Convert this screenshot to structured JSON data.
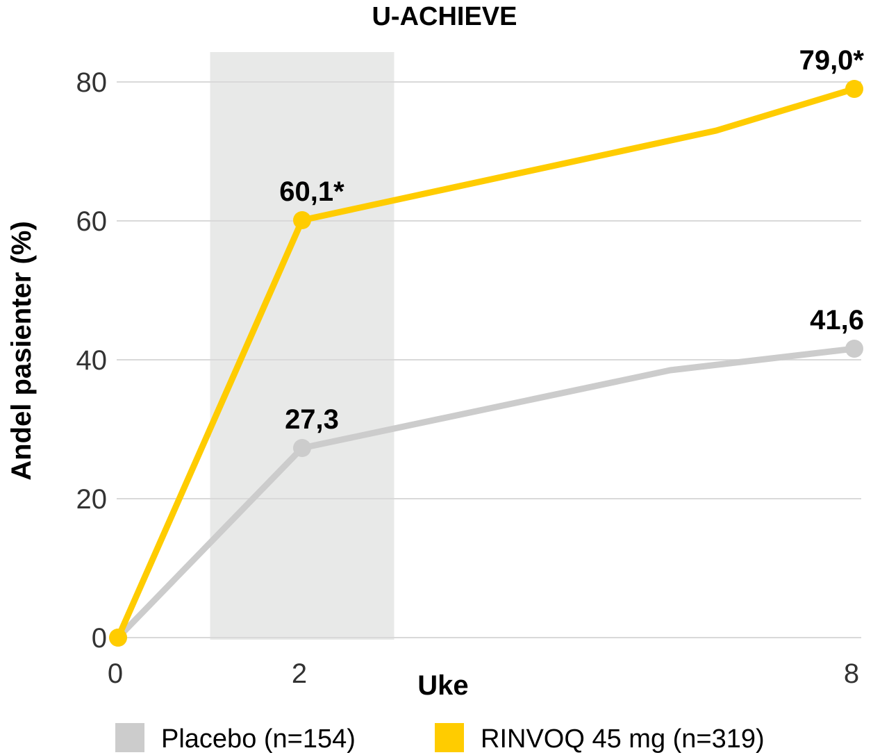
{
  "chart_data": {
    "type": "line",
    "title": "U-ACHIEVE",
    "ylabel": "Andel pasienter (%)",
    "xlabel": "Uke",
    "ylim": [
      0,
      80
    ],
    "y_ticks": [
      "0",
      "20",
      "40",
      "60",
      "80"
    ],
    "xlim": [
      0,
      8
    ],
    "x_ticks": [
      {
        "value": 0,
        "label": "0"
      },
      {
        "value": 2,
        "label": "2"
      },
      {
        "value": 8,
        "label": "8"
      }
    ],
    "shaded_band": {
      "x_from": 1,
      "x_to": 3,
      "color": "#e8e9e8"
    },
    "grid": true,
    "legend_position": "bottom",
    "series": [
      {
        "name": "Placebo (n=154)",
        "color": "#cccccc",
        "points": [
          {
            "x": 0,
            "y": 0
          },
          {
            "x": 2,
            "y": 27.3,
            "label": "27,3"
          },
          {
            "x": 6,
            "y": 38.5
          },
          {
            "x": 8,
            "y": 41.6,
            "label": "41,6"
          }
        ]
      },
      {
        "name": "RINVOQ 45 mg (n=319)",
        "color": "#ffcc00",
        "points": [
          {
            "x": 0,
            "y": 0
          },
          {
            "x": 2,
            "y": 60.1,
            "label": "60,1*"
          },
          {
            "x": 6.5,
            "y": 73
          },
          {
            "x": 8,
            "y": 79.0,
            "label": "79,0*"
          }
        ]
      }
    ]
  }
}
